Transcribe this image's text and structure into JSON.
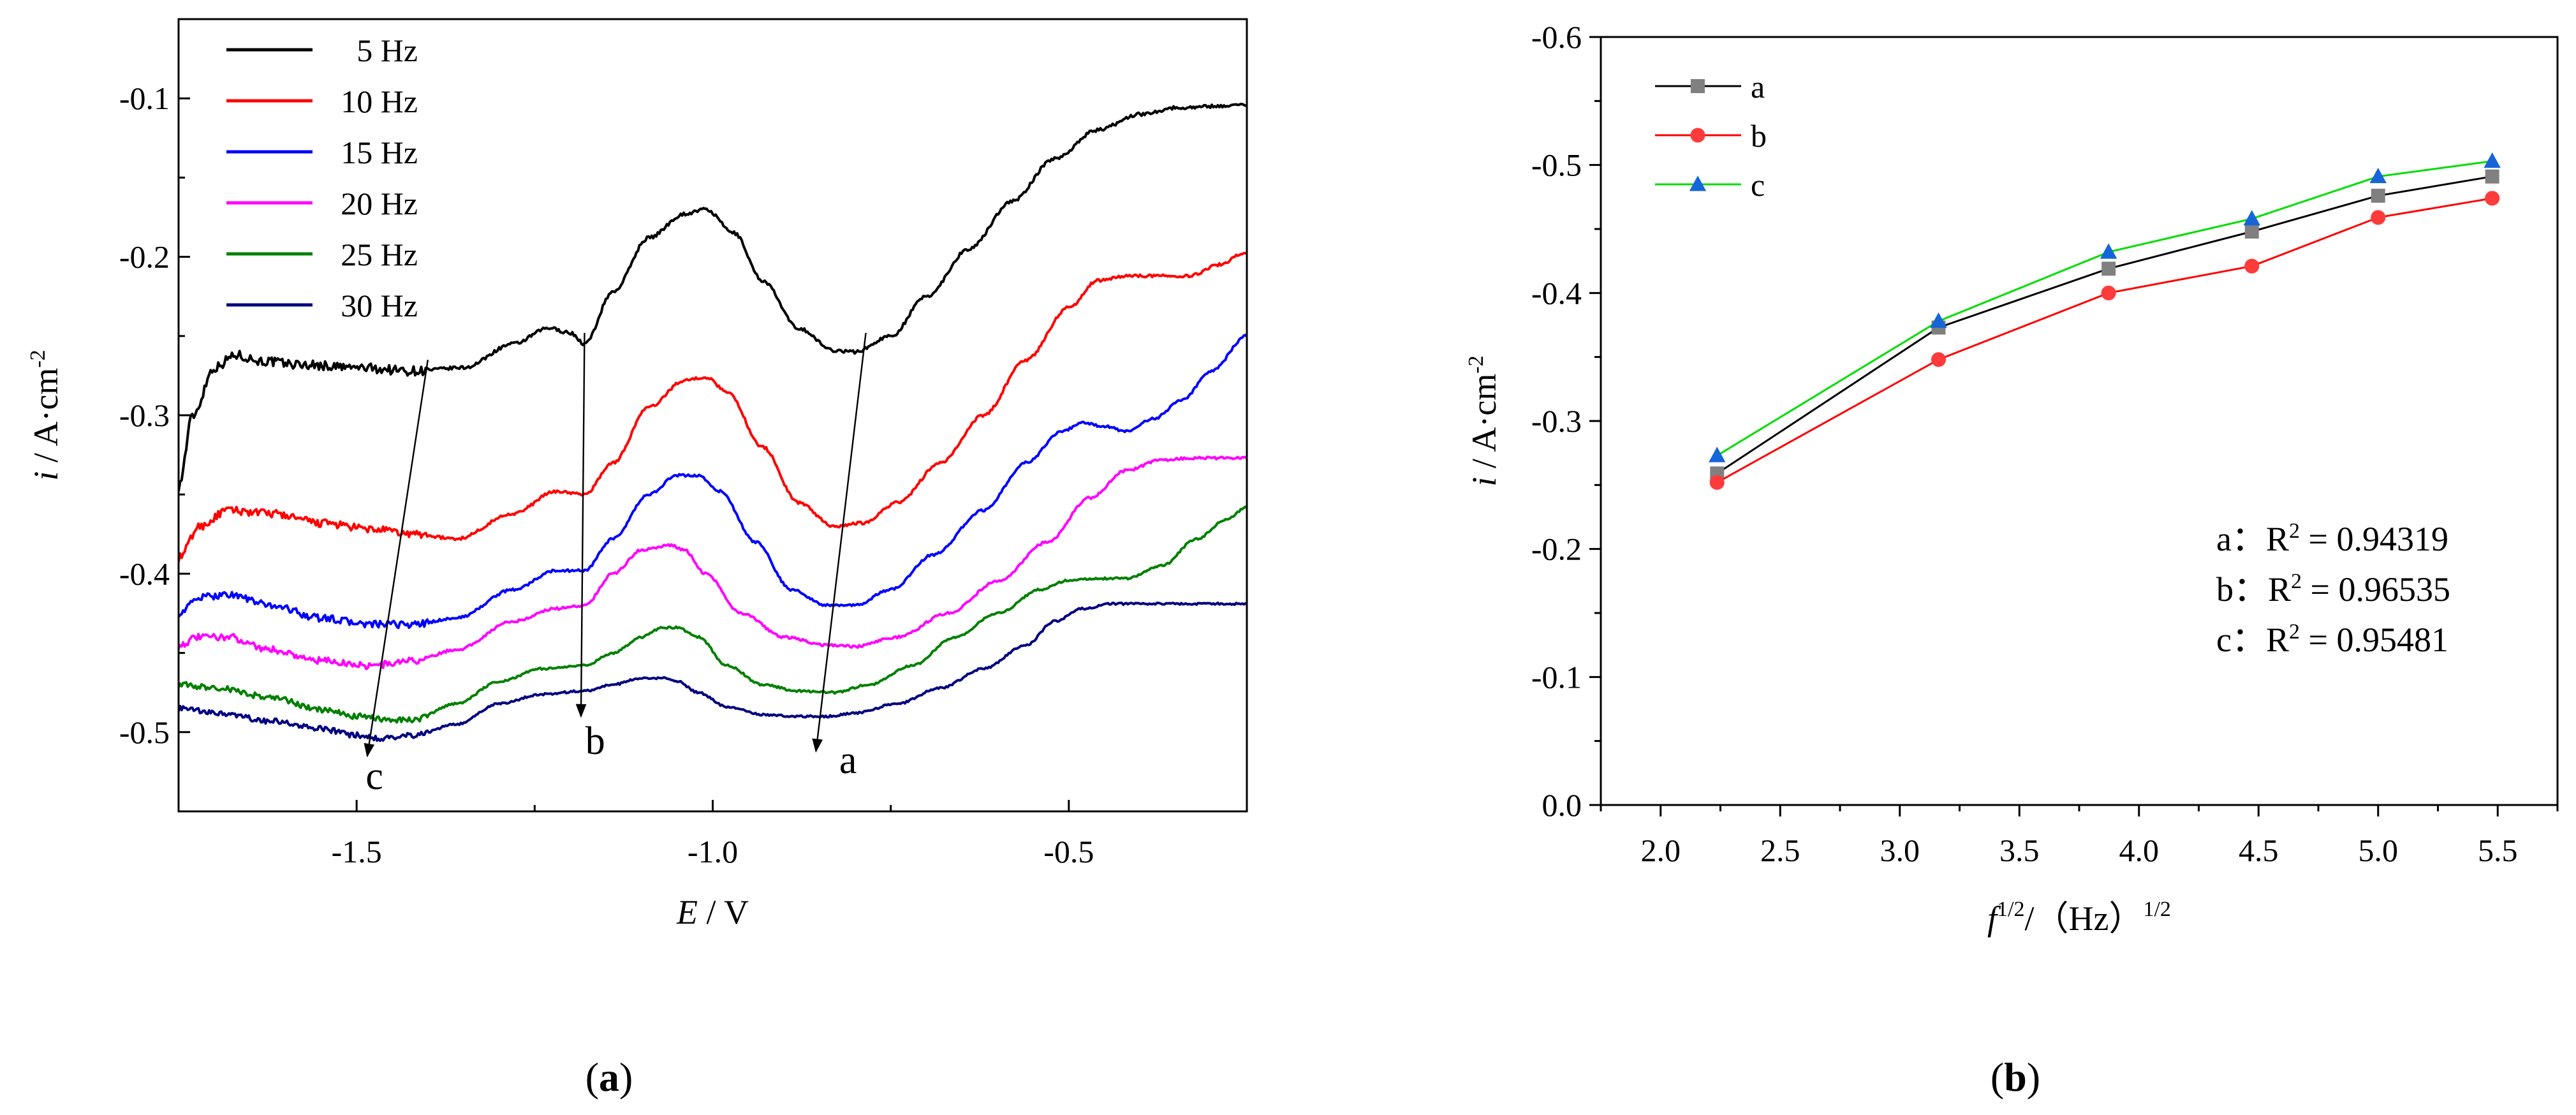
{
  "chart_data": [
    {
      "id": "a",
      "panel_label": "a",
      "type": "line",
      "xlabel_italic": "E",
      "xlabel_rest": " / V",
      "ylabel_italic": "i",
      "ylabel_rest": " / A·cm",
      "ylabel_sup": "-2",
      "xlim": [
        -1.75,
        -0.25
      ],
      "ylim": [
        -0.55,
        -0.05
      ],
      "xticks": [
        -1.5,
        -1.0,
        -0.5
      ],
      "xtick_labels": [
        "-1.5",
        "-1.0",
        "-0.5"
      ],
      "yticks": [
        -0.1,
        -0.2,
        -0.3,
        -0.4,
        -0.5
      ],
      "ytick_labels": [
        "-0.1",
        "-0.2",
        "-0.3",
        "-0.4",
        "-0.5"
      ],
      "legend_position": "top-left",
      "series": [
        {
          "name": "5 Hz",
          "color": "#000000",
          "noise": 0.003,
          "x": [
            -1.75,
            -1.73,
            -1.7,
            -1.67,
            -1.63,
            -1.58,
            -1.5,
            -1.42,
            -1.35,
            -1.28,
            -1.23,
            -1.2,
            -1.18,
            -1.14,
            -1.09,
            -1.04,
            -1.01,
            -0.97,
            -0.93,
            -0.88,
            -0.83,
            -0.8,
            -0.75,
            -0.7,
            -0.64,
            -0.58,
            -0.52,
            -0.46,
            -0.4,
            -0.35,
            -0.3,
            -0.25
          ],
          "values": [
            -0.345,
            -0.3,
            -0.27,
            -0.262,
            -0.266,
            -0.268,
            -0.27,
            -0.272,
            -0.27,
            -0.255,
            -0.245,
            -0.248,
            -0.255,
            -0.222,
            -0.188,
            -0.173,
            -0.17,
            -0.185,
            -0.215,
            -0.245,
            -0.259,
            -0.26,
            -0.25,
            -0.225,
            -0.195,
            -0.165,
            -0.138,
            -0.12,
            -0.11,
            -0.106,
            -0.105,
            -0.104
          ]
        },
        {
          "name": "10 Hz",
          "color": "#ff0000",
          "noise": 0.0025,
          "x": [
            -1.75,
            -1.72,
            -1.68,
            -1.62,
            -1.55,
            -1.48,
            -1.42,
            -1.36,
            -1.28,
            -1.22,
            -1.18,
            -1.14,
            -1.09,
            -1.04,
            -1.01,
            -0.98,
            -0.93,
            -0.88,
            -0.83,
            -0.79,
            -0.74,
            -0.68,
            -0.62,
            -0.56,
            -0.5,
            -0.46,
            -0.42,
            -0.38,
            -0.33,
            -0.29,
            -0.25
          ],
          "values": [
            -0.39,
            -0.37,
            -0.36,
            -0.362,
            -0.368,
            -0.372,
            -0.375,
            -0.378,
            -0.362,
            -0.348,
            -0.35,
            -0.33,
            -0.295,
            -0.278,
            -0.276,
            -0.285,
            -0.32,
            -0.355,
            -0.37,
            -0.368,
            -0.355,
            -0.33,
            -0.3,
            -0.265,
            -0.232,
            -0.215,
            -0.212,
            -0.212,
            -0.212,
            -0.205,
            -0.197
          ]
        },
        {
          "name": "15 Hz",
          "color": "#0000ff",
          "noise": 0.0022,
          "x": [
            -1.75,
            -1.72,
            -1.68,
            -1.62,
            -1.55,
            -1.48,
            -1.42,
            -1.36,
            -1.28,
            -1.22,
            -1.18,
            -1.14,
            -1.09,
            -1.05,
            -1.02,
            -0.99,
            -0.94,
            -0.89,
            -0.84,
            -0.8,
            -0.75,
            -0.69,
            -0.62,
            -0.56,
            -0.51,
            -0.48,
            -0.45,
            -0.42,
            -0.38,
            -0.34,
            -0.3,
            -0.25
          ],
          "values": [
            -0.425,
            -0.415,
            -0.413,
            -0.42,
            -0.428,
            -0.432,
            -0.432,
            -0.428,
            -0.41,
            -0.398,
            -0.398,
            -0.378,
            -0.35,
            -0.338,
            -0.338,
            -0.348,
            -0.38,
            -0.41,
            -0.42,
            -0.42,
            -0.41,
            -0.388,
            -0.36,
            -0.33,
            -0.31,
            -0.305,
            -0.307,
            -0.31,
            -0.302,
            -0.29,
            -0.272,
            -0.25
          ]
        },
        {
          "name": "20 Hz",
          "color": "#ff00ff",
          "noise": 0.0022,
          "x": [
            -1.75,
            -1.72,
            -1.68,
            -1.62,
            -1.55,
            -1.48,
            -1.42,
            -1.36,
            -1.28,
            -1.22,
            -1.18,
            -1.14,
            -1.1,
            -1.06,
            -1.04,
            -1.01,
            -0.96,
            -0.9,
            -0.84,
            -0.8,
            -0.74,
            -0.67,
            -0.6,
            -0.53,
            -0.47,
            -0.42,
            -0.37,
            -0.32,
            -0.28,
            -0.25
          ],
          "values": [
            -0.445,
            -0.44,
            -0.44,
            -0.448,
            -0.455,
            -0.458,
            -0.455,
            -0.448,
            -0.43,
            -0.422,
            -0.42,
            -0.4,
            -0.385,
            -0.382,
            -0.385,
            -0.4,
            -0.425,
            -0.44,
            -0.445,
            -0.446,
            -0.44,
            -0.425,
            -0.405,
            -0.38,
            -0.352,
            -0.335,
            -0.328,
            -0.327,
            -0.327,
            -0.327
          ]
        },
        {
          "name": "25 Hz",
          "color": "#008000",
          "noise": 0.0018,
          "x": [
            -1.75,
            -1.7,
            -1.62,
            -1.55,
            -1.5,
            -1.46,
            -1.42,
            -1.36,
            -1.3,
            -1.24,
            -1.18,
            -1.14,
            -1.1,
            -1.07,
            -1.05,
            -1.02,
            -0.98,
            -0.93,
            -0.88,
            -0.83,
            -0.78,
            -0.72,
            -0.66,
            -0.6,
            -0.54,
            -0.5,
            -0.46,
            -0.42,
            -0.37,
            -0.32,
            -0.28,
            -0.25
          ],
          "values": [
            -0.47,
            -0.472,
            -0.478,
            -0.486,
            -0.49,
            -0.492,
            -0.492,
            -0.482,
            -0.468,
            -0.46,
            -0.458,
            -0.45,
            -0.44,
            -0.434,
            -0.434,
            -0.44,
            -0.458,
            -0.47,
            -0.474,
            -0.475,
            -0.47,
            -0.458,
            -0.44,
            -0.425,
            -0.41,
            -0.404,
            -0.403,
            -0.403,
            -0.395,
            -0.378,
            -0.366,
            -0.358
          ]
        },
        {
          "name": "30 Hz",
          "color": "#000080",
          "noise": 0.0018,
          "x": [
            -1.75,
            -1.7,
            -1.62,
            -1.55,
            -1.5,
            -1.46,
            -1.42,
            -1.36,
            -1.3,
            -1.24,
            -1.18,
            -1.14,
            -1.1,
            -1.07,
            -1.05,
            -1.02,
            -0.98,
            -0.93,
            -0.88,
            -0.84,
            -0.8,
            -0.74,
            -0.68,
            -0.62,
            -0.56,
            -0.52,
            -0.48,
            -0.44,
            -0.4,
            -0.35,
            -0.3,
            -0.25
          ],
          "values": [
            -0.485,
            -0.488,
            -0.493,
            -0.498,
            -0.502,
            -0.504,
            -0.502,
            -0.495,
            -0.482,
            -0.476,
            -0.474,
            -0.47,
            -0.466,
            -0.466,
            -0.468,
            -0.475,
            -0.484,
            -0.489,
            -0.49,
            -0.49,
            -0.488,
            -0.482,
            -0.472,
            -0.46,
            -0.445,
            -0.43,
            -0.422,
            -0.419,
            -0.419,
            -0.419,
            -0.419,
            -0.419
          ]
        }
      ],
      "annotations": [
        {
          "label": "c",
          "from": [
            -1.4,
            -0.265
          ],
          "to": [
            -1.485,
            -0.515
          ],
          "label_at": [
            -1.475,
            -0.527
          ]
        },
        {
          "label": "b",
          "from": [
            -1.18,
            -0.248
          ],
          "to": [
            -1.185,
            -0.49
          ],
          "label_at": [
            -1.165,
            -0.505
          ]
        },
        {
          "label": "a",
          "from": [
            -0.785,
            -0.248
          ],
          "to": [
            -0.855,
            -0.512
          ],
          "label_at": [
            -0.81,
            -0.517
          ]
        }
      ]
    },
    {
      "id": "b",
      "panel_label": "b",
      "type": "line",
      "xlabel_italic": "f",
      "xlabel_sup": "1/2",
      "xlabel_rest": "/（Hz）",
      "xlabel_sup2": "1/2",
      "ylabel_italic": "i",
      "ylabel_rest": " / A·cm",
      "ylabel_sup": "-2",
      "xlim": [
        1.75,
        5.75
      ],
      "ylim": [
        0.0,
        -0.6
      ],
      "xticks": [
        2.0,
        2.5,
        3.0,
        3.5,
        4.0,
        4.5,
        5.0,
        5.5
      ],
      "xtick_labels": [
        "2.0",
        "2.5",
        "3.0",
        "3.5",
        "4.0",
        "4.5",
        "5.0",
        "5.5"
      ],
      "yticks": [
        0.0,
        -0.1,
        -0.2,
        -0.3,
        -0.4,
        -0.5,
        -0.6
      ],
      "ytick_labels": [
        "0.0",
        "-0.1",
        "-0.2",
        "-0.3",
        "-0.4",
        "-0.5",
        "-0.6"
      ],
      "legend_position": "top-left",
      "x": [
        2.236,
        3.162,
        3.873,
        4.472,
        5.0,
        5.477
      ],
      "series": [
        {
          "name": "a",
          "color": "#000000",
          "marker_color": "#808080",
          "marker": "square",
          "values": [
            -0.259,
            -0.373,
            -0.419,
            -0.448,
            -0.476,
            -0.491
          ]
        },
        {
          "name": "b",
          "color": "#ff0000",
          "marker_color": "#ff3b3b",
          "marker": "circle",
          "values": [
            -0.252,
            -0.348,
            -0.4,
            -0.421,
            -0.459,
            -0.474
          ]
        },
        {
          "name": "c",
          "color": "#00dd00",
          "marker_color": "#1565d8",
          "marker": "triangle",
          "values": [
            -0.273,
            -0.378,
            -0.432,
            -0.458,
            -0.491,
            -0.503
          ]
        }
      ],
      "fit_annotations": [
        {
          "prefix": "a：R",
          "sup": "2",
          "value": " = 0.94319"
        },
        {
          "prefix": "b：R",
          "sup": "2",
          "value": " = 0.96535"
        },
        {
          "prefix": "c：R",
          "sup": "2",
          "value": " = 0.95481"
        }
      ]
    }
  ]
}
